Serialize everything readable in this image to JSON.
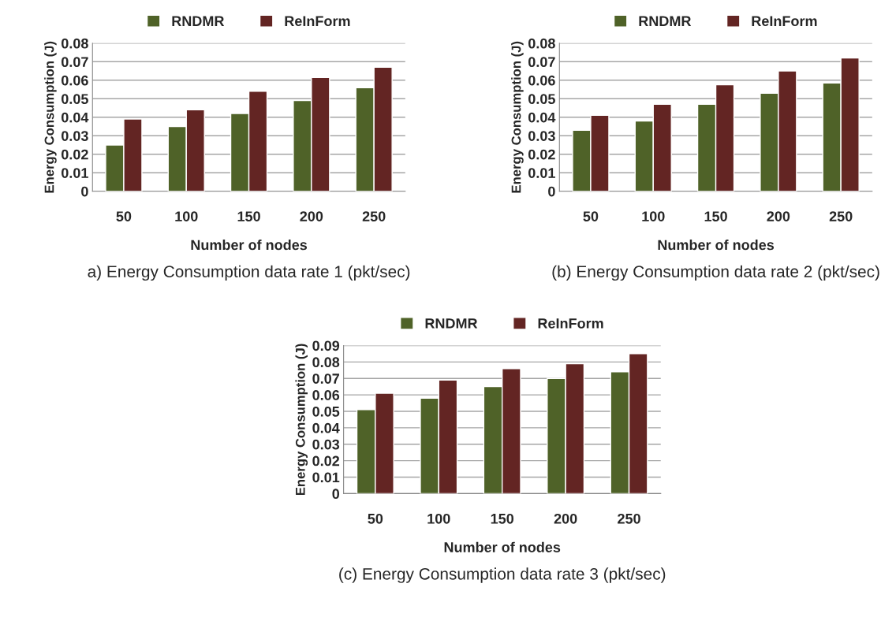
{
  "chart_data": [
    {
      "type": "bar",
      "xlabel": "Number of nodes",
      "ylabel": "Energy Consumption (J)",
      "categories": [
        "50",
        "100",
        "150",
        "200",
        "250"
      ],
      "series": [
        {
          "name": "RNDMR",
          "color": "#4f6228",
          "values": [
            0.025,
            0.035,
            0.042,
            0.049,
            0.056
          ]
        },
        {
          "name": "ReInForm",
          "color": "#632523",
          "values": [
            0.039,
            0.044,
            0.054,
            0.0615,
            0.067
          ]
        }
      ],
      "ylim": [
        0,
        0.08
      ],
      "yticks": [
        0,
        0.01,
        0.02,
        0.03,
        0.04,
        0.05,
        0.06,
        0.07,
        0.08
      ],
      "grid": "y",
      "legend": "top",
      "annotations": [
        "a) Energy Consumption data rate 1 (pkt/sec)"
      ]
    },
    {
      "type": "bar",
      "xlabel": "Number of nodes",
      "ylabel": "Energy Consumption (J)",
      "categories": [
        "50",
        "100",
        "150",
        "200",
        "250"
      ],
      "series": [
        {
          "name": "RNDMR",
          "color": "#4f6228",
          "values": [
            0.033,
            0.038,
            0.047,
            0.053,
            0.0585
          ]
        },
        {
          "name": "ReInForm",
          "color": "#632523",
          "values": [
            0.041,
            0.047,
            0.0575,
            0.065,
            0.072
          ]
        }
      ],
      "ylim": [
        0,
        0.08
      ],
      "yticks": [
        0,
        0.01,
        0.02,
        0.03,
        0.04,
        0.05,
        0.06,
        0.07,
        0.08
      ],
      "grid": "y",
      "legend": "top",
      "annotations": [
        "(b) Energy Consumption data rate 2 (pkt/sec)"
      ]
    },
    {
      "type": "bar",
      "xlabel": "Number of nodes",
      "ylabel": "Energy Consumption (J)",
      "categories": [
        "50",
        "100",
        "150",
        "200",
        "250"
      ],
      "series": [
        {
          "name": "RNDMR",
          "color": "#4f6228",
          "values": [
            0.051,
            0.058,
            0.065,
            0.07,
            0.074
          ]
        },
        {
          "name": "ReInForm",
          "color": "#632523",
          "values": [
            0.061,
            0.069,
            0.076,
            0.079,
            0.085
          ]
        }
      ],
      "ylim": [
        0,
        0.09
      ],
      "yticks": [
        0,
        0.01,
        0.02,
        0.03,
        0.04,
        0.05,
        0.06,
        0.07,
        0.08,
        0.09
      ],
      "grid": "y",
      "legend": "top",
      "annotations": [
        "(c) Energy Consumption data rate 3 (pkt/sec)"
      ]
    }
  ]
}
